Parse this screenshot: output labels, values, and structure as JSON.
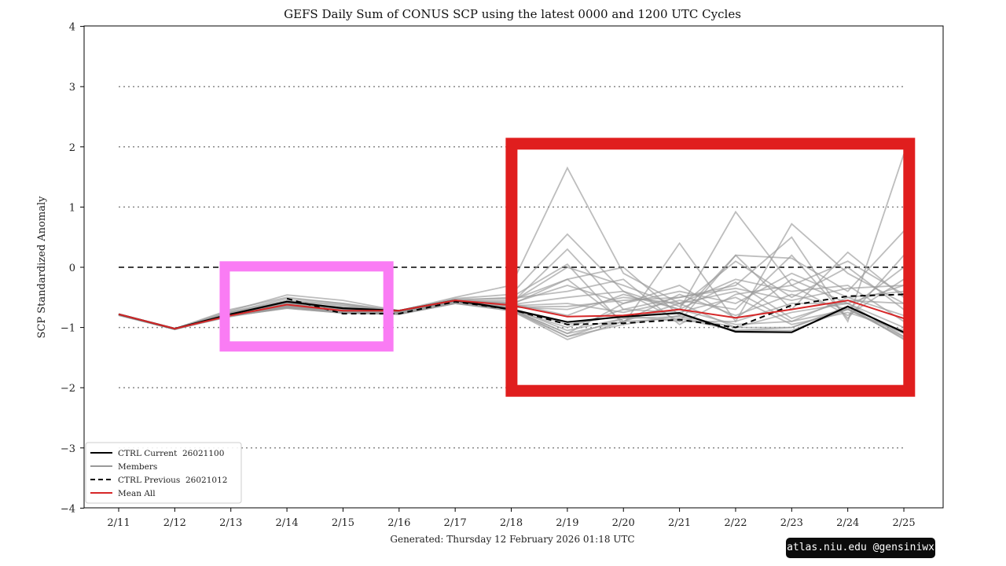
{
  "chart_data": {
    "type": "line",
    "title": "GEFS Daily Sum of CONUS SCP using the latest 0000 and 1200 UTC Cycles",
    "xlabel": "",
    "ylabel": "SCP Standardized Anomaly",
    "footer": "Generated: Thursday  12  February  2026  01:18 UTC",
    "categories": [
      "2/11",
      "2/12",
      "2/13",
      "2/14",
      "2/15",
      "2/16",
      "2/17",
      "2/18",
      "2/19",
      "2/20",
      "2/21",
      "2/22",
      "2/23",
      "2/24",
      "2/25"
    ],
    "ylim": [
      -4,
      4
    ],
    "yticks": [
      4,
      3,
      2,
      1,
      0,
      -1,
      -2,
      -3,
      -4
    ],
    "ytick_labels": [
      "4",
      "3",
      "2",
      "1",
      "0",
      "−1",
      "−2",
      "−3",
      "−4"
    ],
    "grid": "dotted horizontal lines at ±1, ±2, ±3; dashed line at 0",
    "legend": {
      "placement": "lower-left",
      "entries": [
        "CTRL Current  26021100",
        "Members",
        "CTRL Previous  26021012",
        "Mean All"
      ]
    },
    "colors": {
      "ctrl_current": "#000000",
      "members": "#9a9a9a",
      "ctrl_previous": "#000000",
      "mean": "#d62728",
      "zero_line": "#000000",
      "grid": "#888888"
    },
    "series": [
      {
        "name": "CTRL Current  26021100",
        "style": "solid",
        "values": [
          -0.78,
          -1.02,
          -0.78,
          -0.57,
          -0.68,
          -0.72,
          -0.55,
          -0.7,
          -0.91,
          -0.82,
          -0.76,
          -1.07,
          -1.08,
          -0.65,
          -1.08
        ]
      },
      {
        "name": "CTRL Previous  26021012",
        "style": "dashed",
        "values": [
          null,
          null,
          null,
          -0.52,
          -0.77,
          -0.77,
          -0.57,
          -0.7,
          -0.95,
          -0.93,
          -0.87,
          -1.0,
          -0.63,
          -0.48,
          -0.45
        ]
      },
      {
        "name": "Mean All",
        "style": "solid",
        "values": [
          -0.78,
          -1.02,
          -0.8,
          -0.62,
          -0.72,
          -0.72,
          -0.55,
          -0.63,
          -0.82,
          -0.8,
          -0.7,
          -0.84,
          -0.7,
          -0.55,
          -0.85
        ]
      }
    ],
    "members": [
      [
        -0.78,
        -1.02,
        -0.72,
        -0.46,
        -0.55,
        -0.72,
        -0.5,
        -0.3,
        1.65,
        -0.1,
        -0.6,
        -0.4,
        -0.9,
        -0.5,
        -0.8
      ],
      [
        -0.78,
        -1.02,
        -0.7,
        -0.5,
        -0.6,
        -0.74,
        -0.52,
        -0.45,
        0.55,
        -0.4,
        -0.7,
        0.92,
        -0.3,
        -0.8,
        -0.2
      ],
      [
        -0.79,
        -1.03,
        -0.75,
        -0.55,
        -0.62,
        -0.75,
        -0.55,
        -0.5,
        0.05,
        -0.95,
        0.4,
        -0.9,
        0.72,
        -0.1,
        -0.6
      ],
      [
        -0.78,
        -1.02,
        -0.76,
        -0.6,
        -0.66,
        -0.72,
        -0.56,
        -0.55,
        -0.2,
        0.0,
        -0.8,
        0.2,
        -0.7,
        0.25,
        -0.5
      ],
      [
        -0.8,
        -1.03,
        -0.8,
        -0.62,
        -0.7,
        -0.74,
        -0.57,
        -0.6,
        0.3,
        -0.7,
        -0.5,
        -0.3,
        0.5,
        -0.9,
        1.88
      ],
      [
        -0.78,
        -1.02,
        -0.78,
        -0.58,
        -0.68,
        -0.73,
        -0.55,
        -0.62,
        -0.5,
        -0.4,
        -0.9,
        0.2,
        0.15,
        -0.4,
        0.6
      ],
      [
        -0.79,
        -1.02,
        -0.78,
        -0.65,
        -0.72,
        -0.76,
        -0.58,
        -0.7,
        -1.1,
        -0.6,
        -0.3,
        -0.85,
        -0.2,
        -0.6,
        -0.3
      ],
      [
        -0.78,
        -1.02,
        -0.82,
        -0.66,
        -0.75,
        -0.78,
        -0.6,
        -0.72,
        -1.2,
        -0.9,
        -0.85,
        -1.05,
        -1.05,
        -0.7,
        -1.15
      ],
      [
        -0.78,
        -1.02,
        -0.8,
        -0.64,
        -0.74,
        -0.76,
        -0.58,
        -0.7,
        -1.15,
        -0.95,
        -0.8,
        -1.0,
        -1.0,
        -0.65,
        -1.2
      ],
      [
        -0.79,
        -1.03,
        -0.81,
        -0.68,
        -0.76,
        -0.78,
        -0.6,
        -0.68,
        -1.05,
        -0.85,
        -0.7,
        -0.95,
        -0.9,
        -0.7,
        -1.1
      ],
      [
        -0.78,
        -1.02,
        -0.79,
        -0.63,
        -0.73,
        -0.75,
        -0.57,
        -0.66,
        -0.7,
        -0.5,
        -0.6,
        -0.2,
        -0.4,
        -0.3,
        -0.9
      ],
      [
        -0.78,
        -1.02,
        -0.77,
        -0.6,
        -0.7,
        -0.74,
        -0.56,
        -0.6,
        -0.3,
        -0.6,
        -0.4,
        -0.6,
        -0.1,
        -0.5,
        -0.4
      ],
      [
        -0.78,
        -1.02,
        -0.76,
        -0.56,
        -0.64,
        -0.72,
        -0.55,
        -0.58,
        0.0,
        -0.3,
        -0.65,
        0.1,
        -0.5,
        0.0,
        -0.7
      ],
      [
        -0.79,
        -1.02,
        -0.78,
        -0.6,
        -0.68,
        -0.74,
        -0.56,
        -0.64,
        -0.6,
        -0.75,
        -0.55,
        -0.7,
        0.2,
        -0.85,
        0.2
      ],
      [
        -0.78,
        -1.02,
        -0.8,
        -0.65,
        -0.72,
        -0.76,
        -0.58,
        -0.68,
        -0.95,
        -0.8,
        -0.9,
        -0.9,
        -0.6,
        -0.6,
        -1.0
      ],
      [
        -0.78,
        -1.02,
        -0.8,
        -0.66,
        -0.73,
        -0.76,
        -0.58,
        -0.7,
        -1.0,
        -0.7,
        -0.75,
        -0.5,
        -0.95,
        -0.75,
        -1.05
      ],
      [
        -0.78,
        -1.02,
        -0.74,
        -0.52,
        -0.6,
        -0.72,
        -0.53,
        -0.52,
        -0.4,
        -0.2,
        -0.95,
        -0.45,
        -0.3,
        0.1,
        -0.45
      ],
      [
        -0.78,
        -1.02,
        -0.79,
        -0.62,
        -0.7,
        -0.75,
        -0.57,
        -0.6,
        -0.8,
        -0.45,
        -0.7,
        -0.25,
        -0.85,
        -0.55,
        -0.6
      ],
      [
        -0.78,
        -1.02,
        -0.8,
        -0.67,
        -0.75,
        -0.77,
        -0.59,
        -0.7,
        -1.1,
        -0.9,
        -0.6,
        -1.0,
        -0.75,
        -0.6,
        -1.15
      ],
      [
        -0.79,
        -1.03,
        -0.8,
        -0.64,
        -0.72,
        -0.76,
        -0.58,
        -0.66,
        -0.65,
        -0.55,
        -0.5,
        -0.35,
        -0.55,
        -0.35,
        -0.3
      ],
      [
        -0.78,
        -1.02,
        -0.78,
        -0.6,
        -0.68,
        -0.74,
        -0.56,
        -0.62,
        -0.2,
        -0.9,
        -0.45,
        -0.8,
        -0.45,
        -0.7,
        0.0
      ],
      [
        -0.78,
        -1.02,
        -0.81,
        -0.68,
        -0.76,
        -0.78,
        -0.6,
        -0.72,
        -1.15,
        -0.85,
        -0.82,
        -1.05,
        -1.0,
        -0.68,
        -1.18
      ]
    ],
    "annotations": [
      {
        "shape": "rectangle",
        "color": "#fa7cf4",
        "x_range": [
          "2/13",
          "2/16"
        ],
        "y_range": [
          -1.4,
          0.1
        ]
      },
      {
        "shape": "rectangle",
        "color": "#e01e1e",
        "x_range": [
          "2/18",
          "2/25"
        ],
        "y_range": [
          -2.15,
          2.15
        ]
      }
    ]
  },
  "watermark": "atlas.niu.edu  @gensiniwx"
}
